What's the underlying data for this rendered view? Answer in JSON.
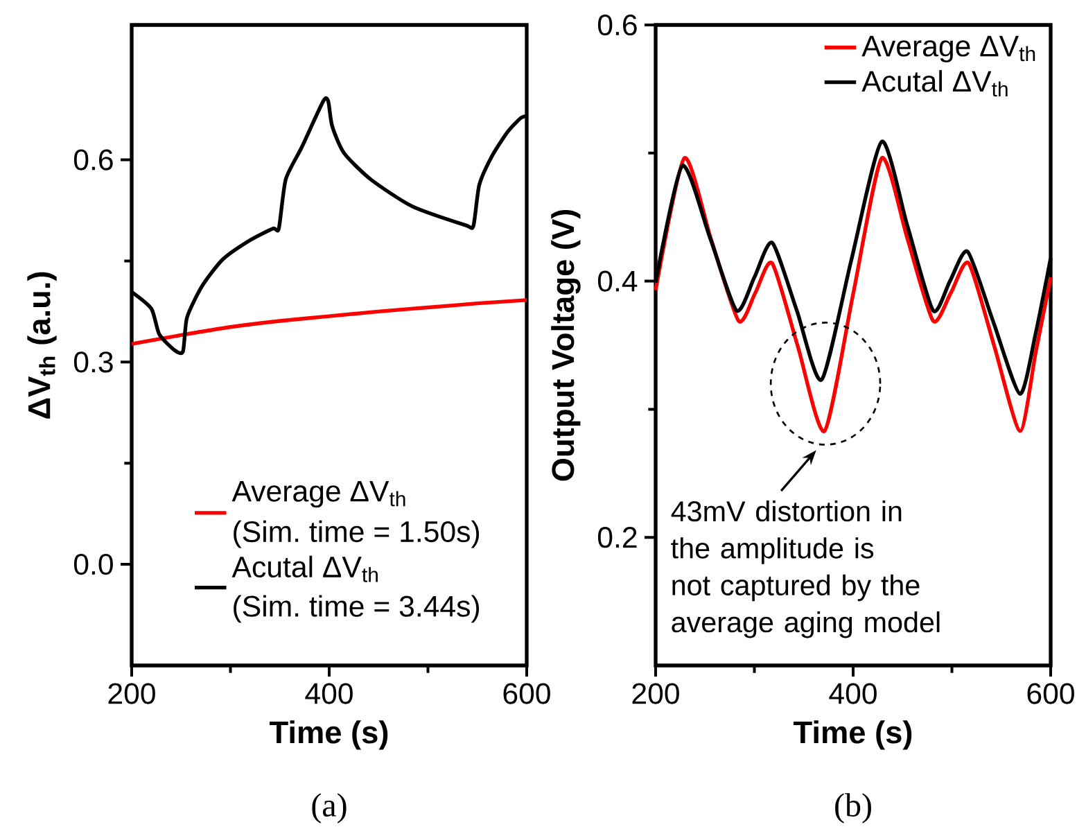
{
  "chart_data": [
    {
      "type": "line",
      "ylabel": "**ΔV$_{th}$ (a.u.)**",
      "xlabel": "**Time (s)**",
      "legend": "bottom",
      "xlim": [
        200,
        600
      ],
      "ylim": [
        -0.15,
        0.8
      ],
      "xticks": [
        200,
        400,
        600
      ],
      "yticks": [
        {
          "value": 0,
          "label": "0.0"
        },
        {
          "value": 0.3,
          "label": "0.3"
        },
        {
          "value": 0.6,
          "label": "0.6"
        }
      ],
      "annotations": [
        "(Sim. time = 1.50s)",
        "(Sim. time = 3.44s)",
        "(a)"
      ],
      "series": [
        {
          "name": "Average ΔV$_{th}$",
          "color": "#ff0000",
          "x": [
            200,
            250,
            300,
            350,
            400,
            450,
            500,
            550,
            600
          ],
          "values": [
            0.327,
            0.34,
            0.352,
            0.361,
            0.368,
            0.375,
            0.381,
            0.387,
            0.392
          ]
        },
        {
          "name": "Acutal ΔV$_{th}$",
          "color": "#000000",
          "x": [
            200,
            220,
            228,
            244,
            252,
            256,
            271,
            292,
            319,
            343,
            349,
            356,
            372,
            394,
            399,
            403,
            415,
            442,
            484,
            538,
            546,
            552,
            565,
            581,
            594,
            600
          ],
          "values": [
            0.404,
            0.379,
            0.341,
            0.317,
            0.316,
            0.366,
            0.412,
            0.452,
            0.48,
            0.498,
            0.498,
            0.571,
            0.618,
            0.687,
            0.687,
            0.65,
            0.61,
            0.571,
            0.531,
            0.503,
            0.502,
            0.563,
            0.606,
            0.642,
            0.662,
            0.665
          ]
        }
      ]
    },
    {
      "type": "line",
      "ylabel": "**Output Voltage (V)**",
      "xlabel": "**Time (s)**",
      "legend": "top right",
      "xlim": [
        200,
        600
      ],
      "ylim": [
        0.1,
        0.6
      ],
      "xticks": [
        200,
        400,
        600
      ],
      "yticks": [
        0.2,
        0.4,
        0.6
      ],
      "annotations": [
        "43mV distortion in the amplitude  is not captured by the average aging model",
        "(b)"
      ],
      "series": [
        {
          "name": "Average ΔV$_{th}$",
          "color": "#ff0000",
          "x": [
            200,
            229,
            256,
            284,
            301,
            318,
            344,
            371,
            400,
            429,
            455,
            481,
            499,
            517,
            543,
            569,
            585,
            600
          ],
          "values": [
            0.393,
            0.496,
            0.433,
            0.369,
            0.391,
            0.414,
            0.349,
            0.283,
            0.39,
            0.496,
            0.433,
            0.369,
            0.391,
            0.414,
            0.349,
            0.283,
            0.345,
            0.403
          ]
        },
        {
          "name": "Acutal ΔV$_{th}$",
          "color": "#000000",
          "x": [
            200,
            227,
            255,
            282,
            300,
            318,
            343,
            368,
            398,
            429,
            455,
            481,
            498,
            516,
            542,
            569,
            585,
            600
          ],
          "values": [
            0.399,
            0.49,
            0.434,
            0.377,
            0.403,
            0.43,
            0.377,
            0.323,
            0.416,
            0.509,
            0.443,
            0.377,
            0.4,
            0.423,
            0.368,
            0.312,
            0.36,
            0.418
          ]
        }
      ]
    }
  ]
}
